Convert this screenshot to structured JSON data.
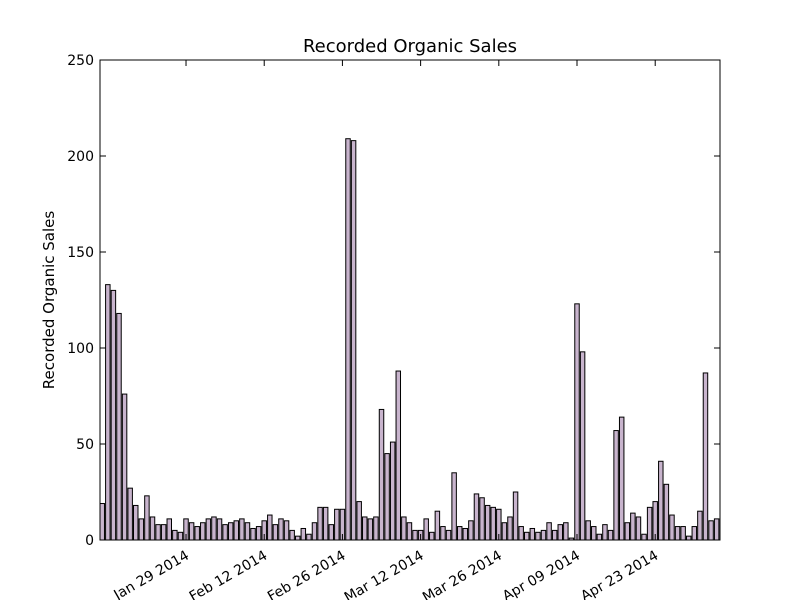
{
  "chart_data": {
    "type": "bar",
    "title": "Recorded Organic Sales",
    "xlabel": "",
    "ylabel": "Recorded Organic Sales",
    "ylim": [
      0,
      250
    ],
    "yticks": [
      0,
      50,
      100,
      150,
      200,
      250
    ],
    "xticks": [
      "Jan 29 2014",
      "Feb 12 2014",
      "Feb 26 2014",
      "Mar 12 2014",
      "Mar 26 2014",
      "Apr 09 2014",
      "Apr 23 2014"
    ],
    "bar_color": "#c8b4cd",
    "grid": false,
    "series": [
      {
        "values": [
          19,
          133,
          130,
          118,
          76,
          27,
          18,
          11,
          23,
          12,
          8,
          8,
          11,
          5,
          4,
          11,
          9,
          7,
          9,
          11,
          12,
          11,
          8,
          9,
          10,
          11,
          9,
          6,
          7,
          10,
          13,
          8,
          11,
          10,
          5,
          2,
          6,
          3,
          9,
          17,
          17,
          8,
          16,
          16,
          209,
          208,
          20,
          12,
          11,
          12,
          68,
          45,
          51,
          88,
          12,
          9,
          5,
          5,
          11,
          4,
          15,
          7,
          5,
          35,
          7,
          6,
          10,
          24,
          22,
          18,
          17,
          16,
          9,
          12,
          25,
          7,
          4,
          6,
          4,
          5,
          9,
          5,
          8,
          9,
          1,
          123,
          98,
          10,
          7,
          3,
          8,
          5,
          57,
          64,
          9,
          14,
          12,
          3,
          17,
          20,
          41,
          29,
          13,
          7,
          7,
          2,
          7,
          15,
          87,
          10,
          11
        ]
      }
    ]
  }
}
